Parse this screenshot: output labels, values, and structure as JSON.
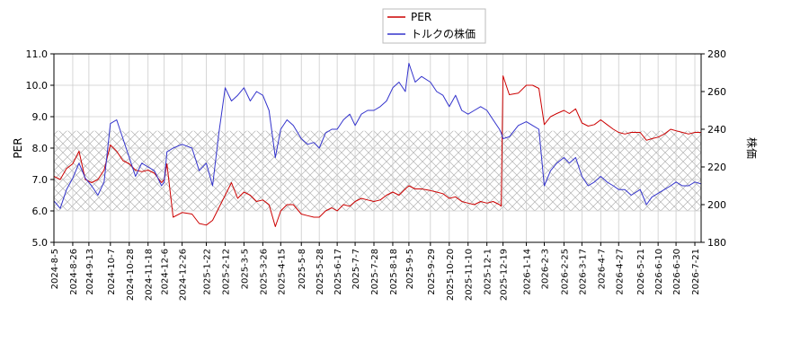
{
  "chart_data": {
    "type": "line",
    "legend": {
      "placement": "top-center",
      "entries": [
        {
          "name": "PER",
          "color": "#cc0000"
        },
        {
          "name": "トルクの株価",
          "color": "#3333cc"
        }
      ]
    },
    "xlabel": "",
    "ylabel_left": "PER",
    "ylabel_right": "株価",
    "ylim_left": [
      5.0,
      11.0
    ],
    "ylim_right": [
      180,
      280
    ],
    "yticks_left": [
      "5.0",
      "6.0",
      "7.0",
      "8.0",
      "9.0",
      "10.0",
      "11.0"
    ],
    "yticks_right": [
      "180",
      "200",
      "220",
      "240",
      "260",
      "280"
    ],
    "xticks": [
      "2024-8-5",
      "2024-8-26",
      "2024-9-13",
      "2024-10-7",
      "2024-10-28",
      "2024-11-18",
      "2024-12-6",
      "2024-12-26",
      "2025-1-22",
      "2025-2-12",
      "2025-3-5",
      "2025-3-26",
      "2025-4-15",
      "2025-5-8",
      "2025-5-28",
      "2025-6-17",
      "2025-7-7",
      "2025-7-28",
      "2025-8-18",
      "2025-9-5",
      "2025-9-29",
      "2025-10-20",
      "2025-11-10",
      "2025-12-1",
      "2025-12-19",
      "2026-1-14",
      "2026-2-3",
      "2026-2-25",
      "2026-3-17",
      "2026-4-7",
      "2026-4-27",
      "2026-5-21",
      "2026-6-10",
      "2026-6-30",
      "2026-7-21"
    ],
    "shaded_band_per": [
      6.0,
      8.55
    ],
    "grid": true,
    "series": [
      {
        "name": "PER",
        "color": "#cc0000",
        "axis": "left",
        "x": [
          "2024-8-5",
          "2024-8-12",
          "2024-8-19",
          "2024-8-26",
          "2024-9-2",
          "2024-9-9",
          "2024-9-16",
          "2024-9-23",
          "2024-9-30",
          "2024-10-7",
          "2024-10-14",
          "2024-10-21",
          "2024-10-28",
          "2024-11-4",
          "2024-11-11",
          "2024-11-18",
          "2024-11-25",
          "2024-12-3",
          "2024-12-6",
          "2024-12-9",
          "2024-12-16",
          "2024-12-26",
          "2025-1-6",
          "2025-1-14",
          "2025-1-22",
          "2025-1-29",
          "2025-2-5",
          "2025-2-12",
          "2025-2-19",
          "2025-2-26",
          "2025-3-5",
          "2025-3-12",
          "2025-3-19",
          "2025-3-26",
          "2025-4-2",
          "2025-4-9",
          "2025-4-15",
          "2025-4-22",
          "2025-4-29",
          "2025-5-8",
          "2025-5-15",
          "2025-5-22",
          "2025-5-28",
          "2025-6-4",
          "2025-6-11",
          "2025-6-17",
          "2025-6-24",
          "2025-7-1",
          "2025-7-7",
          "2025-7-14",
          "2025-7-21",
          "2025-7-28",
          "2025-8-4",
          "2025-8-11",
          "2025-8-18",
          "2025-8-25",
          "2025-9-1",
          "2025-9-5",
          "2025-9-12",
          "2025-9-19",
          "2025-9-29",
          "2025-10-6",
          "2025-10-13",
          "2025-10-20",
          "2025-10-27",
          "2025-11-3",
          "2025-11-10",
          "2025-11-17",
          "2025-11-24",
          "2025-12-1",
          "2025-12-8",
          "2025-12-15",
          "2025-12-17",
          "2025-12-19",
          "2025-12-26",
          "2026-1-5",
          "2026-1-14",
          "2026-1-21",
          "2026-1-28",
          "2026-2-3",
          "2026-2-10",
          "2026-2-17",
          "2026-2-25",
          "2026-3-3",
          "2026-3-10",
          "2026-3-17",
          "2026-3-24",
          "2026-3-31",
          "2026-4-7",
          "2026-4-14",
          "2026-4-21",
          "2026-4-27",
          "2026-5-4",
          "2026-5-11",
          "2026-5-21",
          "2026-5-28",
          "2026-6-3",
          "2026-6-10",
          "2026-6-17",
          "2026-6-24",
          "2026-6-30",
          "2026-7-7",
          "2026-7-14",
          "2026-7-21",
          "2026-7-28"
        ],
        "values": [
          7.1,
          7.0,
          7.35,
          7.5,
          7.9,
          7.0,
          6.9,
          7.0,
          7.3,
          8.1,
          7.9,
          7.6,
          7.5,
          7.3,
          7.25,
          7.3,
          7.2,
          6.9,
          7.0,
          7.5,
          5.8,
          5.95,
          5.9,
          5.6,
          5.55,
          5.7,
          6.1,
          6.5,
          6.9,
          6.4,
          6.6,
          6.5,
          6.3,
          6.35,
          6.2,
          5.5,
          6.0,
          6.2,
          6.2,
          5.9,
          5.85,
          5.8,
          5.8,
          6.0,
          6.1,
          6.0,
          6.2,
          6.15,
          6.3,
          6.4,
          6.35,
          6.3,
          6.35,
          6.5,
          6.6,
          6.5,
          6.7,
          6.8,
          6.7,
          6.7,
          6.65,
          6.6,
          6.55,
          6.4,
          6.45,
          6.3,
          6.25,
          6.2,
          6.3,
          6.25,
          6.3,
          6.2,
          6.15,
          10.3,
          9.7,
          9.75,
          10.0,
          10.0,
          9.9,
          8.75,
          9.0,
          9.1,
          9.2,
          9.1,
          9.25,
          8.8,
          8.7,
          8.75,
          8.9,
          8.75,
          8.6,
          8.5,
          8.45,
          8.5,
          8.5,
          8.25,
          8.3,
          8.35,
          8.45,
          8.6,
          8.55,
          8.5,
          8.45,
          8.5,
          8.5
        ]
      },
      {
        "name": "トルクの株価",
        "color": "#3333cc",
        "axis": "right",
        "x": [
          "2024-8-5",
          "2024-8-12",
          "2024-8-19",
          "2024-8-26",
          "2024-9-2",
          "2024-9-9",
          "2024-9-16",
          "2024-9-23",
          "2024-9-30",
          "2024-10-7",
          "2024-10-14",
          "2024-10-21",
          "2024-10-28",
          "2024-11-4",
          "2024-11-11",
          "2024-11-18",
          "2024-11-25",
          "2024-12-3",
          "2024-12-6",
          "2024-12-9",
          "2024-12-16",
          "2024-12-26",
          "2025-1-6",
          "2025-1-14",
          "2025-1-22",
          "2025-1-29",
          "2025-2-5",
          "2025-2-12",
          "2025-2-19",
          "2025-2-26",
          "2025-3-5",
          "2025-3-12",
          "2025-3-19",
          "2025-3-26",
          "2025-4-2",
          "2025-4-9",
          "2025-4-15",
          "2025-4-22",
          "2025-4-29",
          "2025-5-8",
          "2025-5-15",
          "2025-5-22",
          "2025-5-28",
          "2025-6-4",
          "2025-6-11",
          "2025-6-17",
          "2025-6-24",
          "2025-7-1",
          "2025-7-7",
          "2025-7-14",
          "2025-7-21",
          "2025-7-28",
          "2025-8-4",
          "2025-8-11",
          "2025-8-18",
          "2025-8-25",
          "2025-9-1",
          "2025-9-5",
          "2025-9-12",
          "2025-9-19",
          "2025-9-29",
          "2025-10-6",
          "2025-10-13",
          "2025-10-20",
          "2025-10-27",
          "2025-11-3",
          "2025-11-10",
          "2025-11-17",
          "2025-11-24",
          "2025-12-1",
          "2025-12-8",
          "2025-12-15",
          "2025-12-17",
          "2025-12-19",
          "2025-12-26",
          "2026-1-5",
          "2026-1-14",
          "2026-1-21",
          "2026-1-28",
          "2026-2-3",
          "2026-2-10",
          "2026-2-17",
          "2026-2-25",
          "2026-3-3",
          "2026-3-10",
          "2026-3-17",
          "2026-3-24",
          "2026-3-31",
          "2026-4-7",
          "2026-4-14",
          "2026-4-21",
          "2026-4-27",
          "2026-5-4",
          "2026-5-11",
          "2026-5-21",
          "2026-5-28",
          "2026-6-3",
          "2026-6-10",
          "2026-6-17",
          "2026-6-24",
          "2026-6-30",
          "2026-7-7",
          "2026-7-14",
          "2026-7-21",
          "2026-7-28"
        ],
        "values": [
          202,
          198,
          208,
          214,
          222,
          214,
          210,
          205,
          212,
          243,
          245,
          235,
          225,
          215,
          222,
          220,
          218,
          210,
          212,
          228,
          230,
          232,
          230,
          218,
          222,
          210,
          238,
          262,
          255,
          258,
          262,
          255,
          260,
          258,
          250,
          225,
          240,
          245,
          242,
          235,
          232,
          233,
          230,
          238,
          240,
          240,
          245,
          248,
          242,
          248,
          250,
          250,
          252,
          255,
          262,
          265,
          260,
          275,
          265,
          268,
          265,
          260,
          258,
          252,
          258,
          250,
          248,
          250,
          252,
          250,
          245,
          240,
          238,
          235,
          236,
          242,
          244,
          242,
          240,
          210,
          218,
          222,
          225,
          222,
          225,
          215,
          210,
          212,
          215,
          212,
          210,
          208,
          208,
          205,
          208,
          200,
          204,
          206,
          208,
          210,
          212,
          210,
          210,
          212,
          211
        ]
      }
    ]
  }
}
